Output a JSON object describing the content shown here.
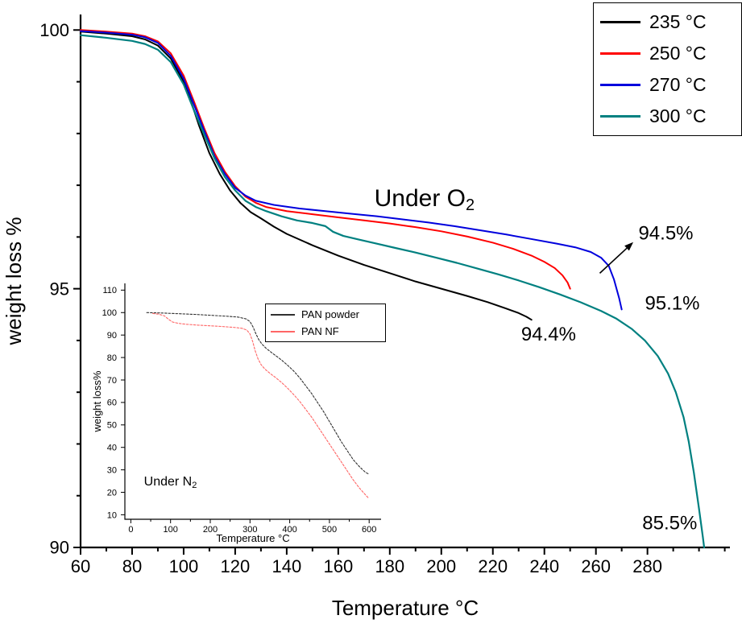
{
  "page": {
    "background": "#ffffff"
  },
  "colors": {
    "series_235": "#000000",
    "series_250": "#ff0000",
    "series_270": "#0000dd",
    "series_300": "#008080",
    "inset_powder": "#303030",
    "inset_nf": "#ff6666",
    "axis": "#000000"
  },
  "chart_data": [
    {
      "id": "main",
      "type": "line",
      "title": "",
      "xlabel": "Temperature °C",
      "ylabel": "weight loss %",
      "xlim": [
        60,
        312
      ],
      "ylim": [
        90,
        100.3
      ],
      "xticks": [
        60,
        80,
        100,
        120,
        140,
        160,
        180,
        200,
        220,
        240,
        260,
        280
      ],
      "xtick_minor_step": 10,
      "yticks": [
        90,
        95,
        100
      ],
      "ytick_minor_step": 1,
      "grid": false,
      "legend": {
        "position": "top-right",
        "entries": [
          {
            "label": "235 °C",
            "color": "#000000"
          },
          {
            "label": "250 °C",
            "color": "#ff0000"
          },
          {
            "label": "270 °C",
            "color": "#0000dd"
          },
          {
            "label": "300 °C",
            "color": "#008080"
          }
        ]
      },
      "series": [
        {
          "name": "235 °C",
          "color": "#000000",
          "width": 2,
          "points": [
            [
              60,
              99.97
            ],
            [
              70,
              99.93
            ],
            [
              80,
              99.88
            ],
            [
              85,
              99.82
            ],
            [
              90,
              99.7
            ],
            [
              95,
              99.45
            ],
            [
              100,
              99.0
            ],
            [
              103,
              98.6
            ],
            [
              106,
              98.15
            ],
            [
              110,
              97.62
            ],
            [
              114,
              97.22
            ],
            [
              118,
              96.9
            ],
            [
              122,
              96.66
            ],
            [
              126,
              96.48
            ],
            [
              130,
              96.36
            ],
            [
              135,
              96.2
            ],
            [
              140,
              96.06
            ],
            [
              150,
              95.84
            ],
            [
              160,
              95.64
            ],
            [
              170,
              95.46
            ],
            [
              180,
              95.3
            ],
            [
              190,
              95.14
            ],
            [
              200,
              95.0
            ],
            [
              210,
              94.86
            ],
            [
              218,
              94.74
            ],
            [
              225,
              94.62
            ],
            [
              230,
              94.53
            ],
            [
              233,
              94.46
            ],
            [
              235,
              94.4
            ]
          ]
        },
        {
          "name": "250 °C",
          "color": "#ff0000",
          "width": 2,
          "points": [
            [
              60,
              100.0
            ],
            [
              70,
              99.97
            ],
            [
              80,
              99.93
            ],
            [
              85,
              99.88
            ],
            [
              90,
              99.78
            ],
            [
              95,
              99.55
            ],
            [
              100,
              99.12
            ],
            [
              104,
              98.62
            ],
            [
              108,
              98.1
            ],
            [
              112,
              97.62
            ],
            [
              116,
              97.26
            ],
            [
              120,
              96.98
            ],
            [
              124,
              96.78
            ],
            [
              128,
              96.66
            ],
            [
              132,
              96.58
            ],
            [
              140,
              96.5
            ],
            [
              150,
              96.44
            ],
            [
              160,
              96.38
            ],
            [
              170,
              96.32
            ],
            [
              180,
              96.26
            ],
            [
              190,
              96.19
            ],
            [
              200,
              96.11
            ],
            [
              210,
              96.01
            ],
            [
              220,
              95.89
            ],
            [
              228,
              95.77
            ],
            [
              235,
              95.64
            ],
            [
              240,
              95.52
            ],
            [
              244,
              95.4
            ],
            [
              247,
              95.26
            ],
            [
              249,
              95.12
            ],
            [
              250,
              95.0
            ]
          ]
        },
        {
          "name": "270 °C",
          "color": "#0000dd",
          "width": 2,
          "points": [
            [
              60,
              99.98
            ],
            [
              70,
              99.95
            ],
            [
              80,
              99.91
            ],
            [
              85,
              99.86
            ],
            [
              90,
              99.75
            ],
            [
              95,
              99.5
            ],
            [
              100,
              99.06
            ],
            [
              104,
              98.56
            ],
            [
              108,
              98.05
            ],
            [
              112,
              97.56
            ],
            [
              116,
              97.22
            ],
            [
              120,
              96.95
            ],
            [
              124,
              96.8
            ],
            [
              128,
              96.7
            ],
            [
              135,
              96.62
            ],
            [
              145,
              96.55
            ],
            [
              155,
              96.5
            ],
            [
              165,
              96.45
            ],
            [
              175,
              96.4
            ],
            [
              185,
              96.34
            ],
            [
              195,
              96.28
            ],
            [
              205,
              96.21
            ],
            [
              215,
              96.13
            ],
            [
              225,
              96.05
            ],
            [
              235,
              95.96
            ],
            [
              245,
              95.87
            ],
            [
              252,
              95.8
            ],
            [
              258,
              95.71
            ],
            [
              262,
              95.6
            ],
            [
              265,
              95.44
            ],
            [
              267,
              95.18
            ],
            [
              269,
              94.82
            ],
            [
              270,
              94.6
            ]
          ]
        },
        {
          "name": "300 °C",
          "color": "#008080",
          "width": 2.2,
          "points": [
            [
              60,
              99.9
            ],
            [
              70,
              99.85
            ],
            [
              80,
              99.79
            ],
            [
              85,
              99.73
            ],
            [
              90,
              99.62
            ],
            [
              95,
              99.38
            ],
            [
              100,
              98.95
            ],
            [
              104,
              98.45
            ],
            [
              108,
              97.98
            ],
            [
              112,
              97.52
            ],
            [
              116,
              97.16
            ],
            [
              120,
              96.9
            ],
            [
              124,
              96.7
            ],
            [
              128,
              96.58
            ],
            [
              132,
              96.5
            ],
            [
              138,
              96.4
            ],
            [
              144,
              96.32
            ],
            [
              150,
              96.27
            ],
            [
              155,
              96.21
            ],
            [
              158,
              96.1
            ],
            [
              162,
              96.02
            ],
            [
              168,
              95.95
            ],
            [
              175,
              95.87
            ],
            [
              182,
              95.79
            ],
            [
              190,
              95.7
            ],
            [
              198,
              95.6
            ],
            [
              206,
              95.5
            ],
            [
              214,
              95.39
            ],
            [
              222,
              95.28
            ],
            [
              230,
              95.16
            ],
            [
              238,
              95.03
            ],
            [
              246,
              94.89
            ],
            [
              254,
              94.74
            ],
            [
              262,
              94.57
            ],
            [
              268,
              94.42
            ],
            [
              274,
              94.22
            ],
            [
              279,
              94.0
            ],
            [
              284,
              93.7
            ],
            [
              288,
              93.36
            ],
            [
              291,
              93.0
            ],
            [
              294,
              92.52
            ],
            [
              296,
              92.05
            ],
            [
              298,
              91.45
            ],
            [
              300,
              90.75
            ],
            [
              301.5,
              90.2
            ],
            [
              302,
              90.0
            ]
          ]
        }
      ],
      "annotations": [
        {
          "text": "Under O",
          "sub": "2",
          "x": 174,
          "y": 96.6,
          "size": 30
        },
        {
          "text": "94.5%",
          "x": 276.5,
          "y": 95.95,
          "size": 24
        },
        {
          "text": "95.1%",
          "x": 279,
          "y": 94.6,
          "size": 24
        },
        {
          "text": "94.4%",
          "x": 231,
          "y": 94.0,
          "size": 24
        },
        {
          "text": "85.5%",
          "x": 278,
          "y": 90.35,
          "size": 24
        },
        {
          "type": "arrow",
          "x1": 261.5,
          "y1": 95.3,
          "x2": 274.5,
          "y2": 95.9
        }
      ]
    },
    {
      "id": "inset",
      "type": "line",
      "title": "",
      "xlabel": "Temperature °C",
      "ylabel": "weight loss%",
      "xlim": [
        -15,
        630
      ],
      "ylim": [
        8,
        113
      ],
      "xticks": [
        0,
        100,
        200,
        300,
        400,
        500,
        600
      ],
      "xtick_minor_step": 50,
      "yticks": [
        10,
        20,
        30,
        40,
        50,
        60,
        70,
        80,
        90,
        100,
        110
      ],
      "ytick_minor_step": 0,
      "grid": false,
      "legend": {
        "position": "top-right",
        "entries": [
          {
            "label": "PAN powder",
            "color": "#303030"
          },
          {
            "label": "PAN NF",
            "color": "#ff6666"
          }
        ]
      },
      "series": [
        {
          "name": "PAN powder",
          "color": "#303030",
          "width": 1.1,
          "dash": "2.5 2",
          "points": [
            [
              40,
              100
            ],
            [
              80,
              99.8
            ],
            [
              120,
              99.5
            ],
            [
              160,
              99.2
            ],
            [
              200,
              98.8
            ],
            [
              240,
              98.4
            ],
            [
              270,
              98.0
            ],
            [
              290,
              97.2
            ],
            [
              300,
              96.0
            ],
            [
              308,
              93.5
            ],
            [
              315,
              90.5
            ],
            [
              322,
              88.0
            ],
            [
              330,
              86.0
            ],
            [
              340,
              84.2
            ],
            [
              352,
              82.5
            ],
            [
              365,
              80.8
            ],
            [
              380,
              78.8
            ],
            [
              395,
              76.5
            ],
            [
              410,
              74.0
            ],
            [
              425,
              71.0
            ],
            [
              440,
              67.5
            ],
            [
              455,
              64.0
            ],
            [
              470,
              60.0
            ],
            [
              485,
              56.0
            ],
            [
              500,
              51.5
            ],
            [
              515,
              47.0
            ],
            [
              530,
              42.5
            ],
            [
              545,
              38.5
            ],
            [
              560,
              34.5
            ],
            [
              575,
              31.5
            ],
            [
              590,
              29.0
            ],
            [
              600,
              28.0
            ]
          ]
        },
        {
          "name": "PAN NF",
          "color": "#ff6666",
          "width": 1.1,
          "dash": "2.5 2",
          "points": [
            [
              55,
              99.6
            ],
            [
              70,
              99.3
            ],
            [
              85,
              98.5
            ],
            [
              95,
              97.0
            ],
            [
              105,
              95.8
            ],
            [
              120,
              95.2
            ],
            [
              140,
              94.8
            ],
            [
              170,
              94.4
            ],
            [
              200,
              94.1
            ],
            [
              230,
              93.8
            ],
            [
              260,
              93.4
            ],
            [
              280,
              93.0
            ],
            [
              292,
              92.2
            ],
            [
              300,
              90.5
            ],
            [
              307,
              87.0
            ],
            [
              313,
              83.0
            ],
            [
              320,
              79.5
            ],
            [
              328,
              76.8
            ],
            [
              338,
              74.8
            ],
            [
              350,
              73.0
            ],
            [
              365,
              71.0
            ],
            [
              380,
              68.8
            ],
            [
              395,
              66.3
            ],
            [
              410,
              63.5
            ],
            [
              425,
              60.5
            ],
            [
              440,
              57.0
            ],
            [
              455,
              53.5
            ],
            [
              470,
              49.5
            ],
            [
              485,
              45.5
            ],
            [
              500,
              41.5
            ],
            [
              515,
              37.5
            ],
            [
              530,
              33.5
            ],
            [
              545,
              29.5
            ],
            [
              560,
              25.5
            ],
            [
              575,
              22.0
            ],
            [
              590,
              19.0
            ],
            [
              598,
              17.5
            ]
          ]
        }
      ],
      "annotations": [
        {
          "text": "Under N",
          "sub": "2",
          "x": 33,
          "y": 23,
          "size": 16
        }
      ]
    }
  ]
}
